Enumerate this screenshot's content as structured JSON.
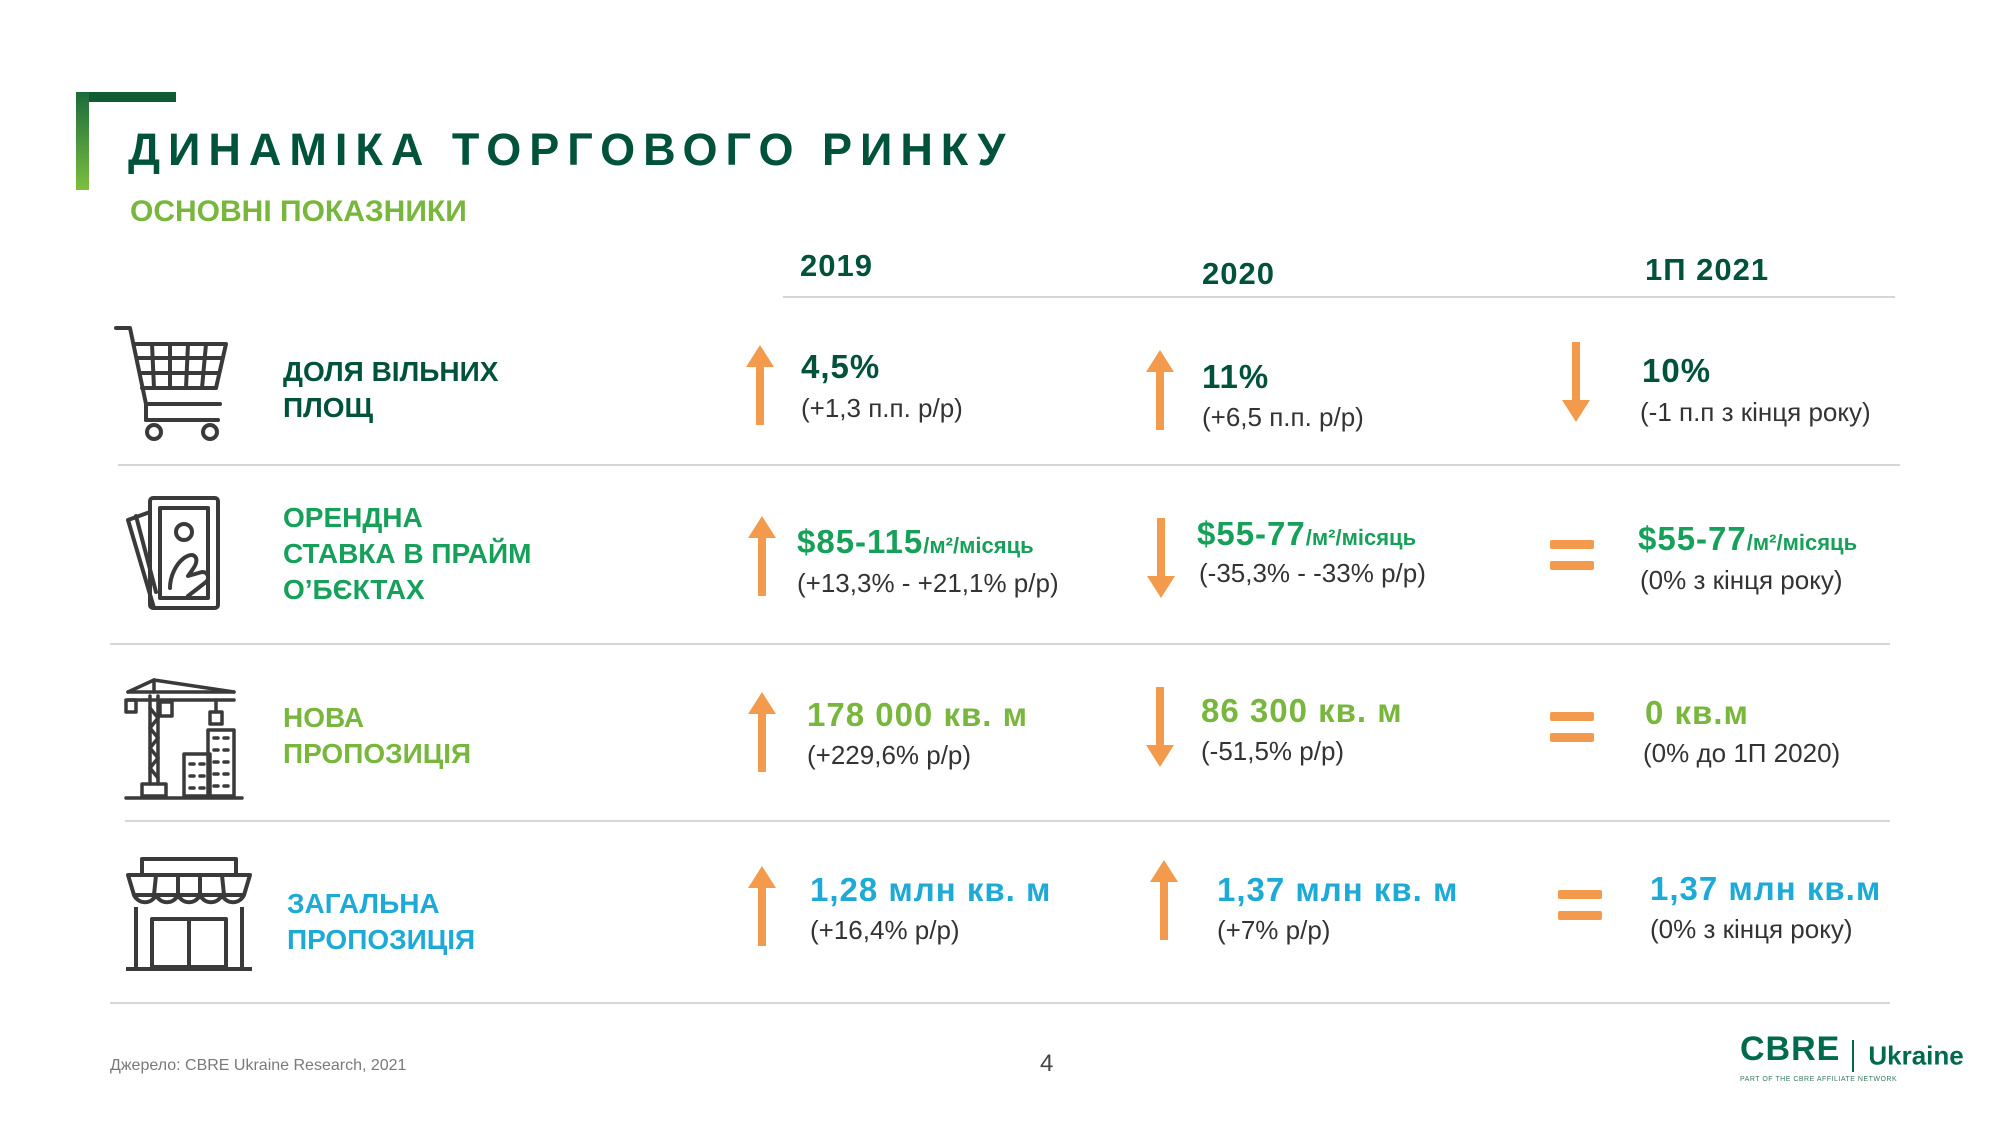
{
  "header": {
    "title": "ДИНАМІКА ТОРГОВОГО РИНКУ",
    "subtitle": "ОСНОВНІ ПОКАЗНИКИ"
  },
  "years": [
    "2019",
    "2020",
    "1П 2021"
  ],
  "colors": {
    "dark_green": "#00523a",
    "teal_green": "#17a05a",
    "light_green": "#78b63e",
    "blue": "#1eaad6",
    "orange": "#f39a4d"
  },
  "rows": [
    {
      "icon": "shopping-cart-icon",
      "label": [
        "ДОЛЯ ВІЛЬНИХ",
        "ПЛОЩ"
      ],
      "cells": [
        {
          "trend": "up",
          "value": "4,5%",
          "unit": "",
          "change": "(+1,3 п.п. р/р)"
        },
        {
          "trend": "up",
          "value": "11%",
          "unit": "",
          "change": "(+6,5 п.п. р/р)"
        },
        {
          "trend": "down",
          "value": "10%",
          "unit": "",
          "change": "(-1 п.п з кінця року)"
        }
      ]
    },
    {
      "icon": "money-hand-icon",
      "label": [
        "ОРЕНДНА",
        "СТАВКА В ПРАЙМ",
        "О’БЄКТАХ"
      ],
      "cells": [
        {
          "trend": "up",
          "value": "$85-115",
          "unit": "/м²/місяць",
          "change": "(+13,3% - +21,1% р/р)"
        },
        {
          "trend": "down",
          "value": "$55-77",
          "unit": "/м²/місяць",
          "change": "(-35,3% - -33% р/р)"
        },
        {
          "trend": "equal",
          "value": "$55-77",
          "unit": "/м²/місяць",
          "change": "(0% з кінця року)"
        }
      ]
    },
    {
      "icon": "construction-crane-icon",
      "label": [
        "НОВА",
        "ПРОПОЗИЦІЯ"
      ],
      "cells": [
        {
          "trend": "up",
          "value": "178 000 кв. м",
          "unit": "",
          "change": "(+229,6% р/р)"
        },
        {
          "trend": "down",
          "value": "86 300 кв. м",
          "unit": "",
          "change": "(-51,5% р/р)"
        },
        {
          "trend": "equal",
          "value": "0 кв.м",
          "unit": "",
          "change": "(0% до 1П 2020)"
        }
      ]
    },
    {
      "icon": "storefront-icon",
      "label": [
        "ЗАГАЛЬНА",
        "ПРОПОЗИЦІЯ"
      ],
      "cells": [
        {
          "trend": "up",
          "value": "1,28 млн кв. м",
          "unit": "",
          "change": "(+16,4% р/р)"
        },
        {
          "trend": "up",
          "value": "1,37 млн кв. м",
          "unit": "",
          "change": "(+7% р/р)"
        },
        {
          "trend": "equal",
          "value": "1,37 млн кв.м",
          "unit": "",
          "change": "(0% з кінця року)"
        }
      ]
    }
  ],
  "footer": {
    "source": "Джерело: CBRE Ukraine Research, 2021",
    "page_number": "4"
  },
  "logo": {
    "brand": "CBRE",
    "region": "Ukraine",
    "tagline": "PART OF THE CBRE AFFILIATE NETWORK"
  }
}
